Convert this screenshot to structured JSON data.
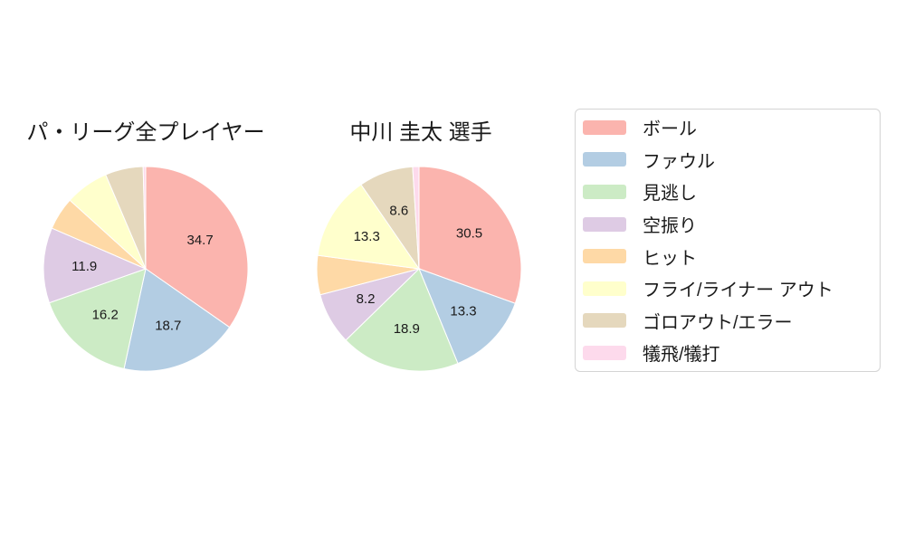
{
  "page": {
    "background": "#ffffff",
    "text_color": "#1a1a1a"
  },
  "chart_data": [
    {
      "type": "pie",
      "title": "パ・リーグ全プレイヤー",
      "categories": [
        "ボール",
        "ファウル",
        "見逃し",
        "空振り",
        "ヒット",
        "フライ/ライナー アウト",
        "ゴロアウト/エラー",
        "犠飛/犠打"
      ],
      "values": [
        34.7,
        18.7,
        16.2,
        11.9,
        5.2,
        6.9,
        6.0,
        0.4
      ],
      "shown_value_labels": [
        "34.7",
        "18.7",
        "16.2",
        "11.9"
      ],
      "start": "top",
      "direction": "clockwise",
      "label_radius_frac": 0.6,
      "label_min_percent": 8,
      "legend_position": "right",
      "grid": false
    },
    {
      "type": "pie",
      "title": "中川 圭太 選手",
      "categories": [
        "ボール",
        "ファウル",
        "見逃し",
        "空振り",
        "ヒット",
        "フライ/ライナー アウト",
        "ゴロアウト/エラー",
        "犠飛/犠打"
      ],
      "values": [
        30.5,
        13.3,
        18.9,
        8.2,
        6.2,
        13.3,
        8.6,
        1.0
      ],
      "shown_value_labels": [
        "30.5",
        "13.3",
        "18.9",
        "8.2",
        "13.3",
        "8.6"
      ],
      "start": "top",
      "direction": "clockwise",
      "label_radius_frac": 0.6,
      "label_min_percent": 8,
      "legend_position": "right",
      "grid": false
    }
  ],
  "legend": {
    "items": [
      {
        "key": "ball",
        "label": "ボール",
        "color": "#fbb4ae"
      },
      {
        "key": "foul",
        "label": "ファウル",
        "color": "#b3cde3"
      },
      {
        "key": "called-strike",
        "label": "見逃し",
        "color": "#ccebc5"
      },
      {
        "key": "swinging-strike",
        "label": "空振り",
        "color": "#decbe4"
      },
      {
        "key": "hit",
        "label": "ヒット",
        "color": "#fed9a6"
      },
      {
        "key": "fly-liner-out",
        "label": "フライ/ライナー アウト",
        "color": "#ffffcc"
      },
      {
        "key": "ground-out-error",
        "label": "ゴロアウト/エラー",
        "color": "#e5d8bd"
      },
      {
        "key": "sac-fly-sac-bunt",
        "label": "犠飛/犠打",
        "color": "#fddaec"
      }
    ],
    "slice_edge_color": "#ffffff"
  }
}
